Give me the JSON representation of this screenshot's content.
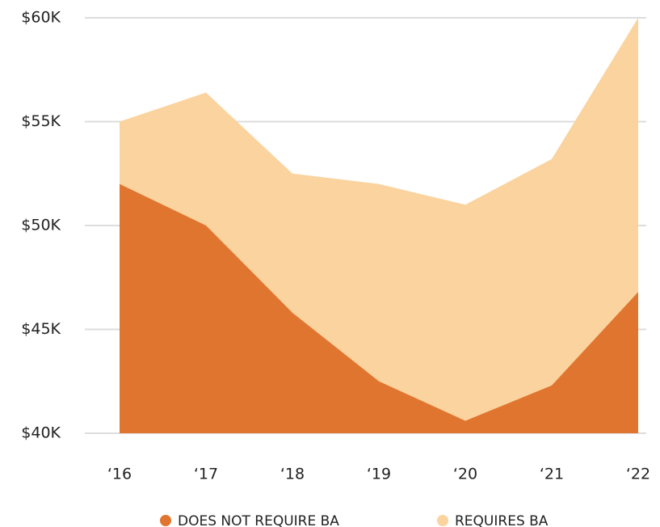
{
  "chart_data": {
    "type": "area",
    "categories": [
      "‘16",
      "‘17",
      "‘18",
      "‘19",
      "‘20",
      "‘21",
      "‘22"
    ],
    "series": [
      {
        "name": "REQUIRES BA",
        "color": "#fbd39e",
        "values": [
          55000,
          56400,
          52500,
          52000,
          51000,
          53200,
          60000
        ]
      },
      {
        "name": "DOES NOT REQUIRE BA",
        "color": "#e07530",
        "values": [
          52000,
          50000,
          45800,
          42500,
          40600,
          42300,
          46800
        ]
      }
    ],
    "ylim": [
      40000,
      60000
    ],
    "yticks": [
      {
        "value": 40000,
        "label": "$40K"
      },
      {
        "value": 45000,
        "label": "$45K"
      },
      {
        "value": 50000,
        "label": "$50K"
      },
      {
        "value": 55000,
        "label": "$55K"
      },
      {
        "value": 60000,
        "label": "$60K"
      }
    ],
    "grid": true
  }
}
